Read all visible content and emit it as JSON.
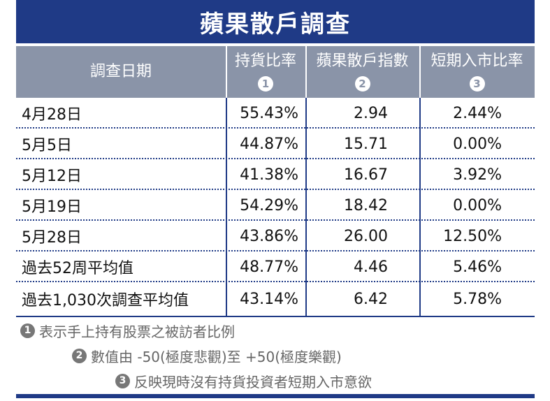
{
  "title": "蘋果散戶調查",
  "headers": {
    "date": "調查日期",
    "col1": {
      "label": "持貨比率",
      "num": "1"
    },
    "col2": {
      "label": "蘋果散戶指數",
      "num": "2"
    },
    "col3": {
      "label": "短期入市比率",
      "num": "3"
    }
  },
  "rows": [
    {
      "date": "4月28日",
      "holding": "55.43%",
      "index": "2.94",
      "entry": "2.44%"
    },
    {
      "date": "5月5日",
      "holding": "44.87%",
      "index": "15.71",
      "entry": "0.00%"
    },
    {
      "date": "5月12日",
      "holding": "41.38%",
      "index": "16.67",
      "entry": "3.92%"
    },
    {
      "date": "5月19日",
      "holding": "54.29%",
      "index": "18.42",
      "entry": "0.00%"
    },
    {
      "date": "5月28日",
      "holding": "43.86%",
      "index": "26.00",
      "entry": "12.50%"
    },
    {
      "date": "過去52周平均值",
      "holding": "48.77%",
      "index": "4.46",
      "entry": "5.46%"
    },
    {
      "date": "過去1,030次調查平均值",
      "holding": "43.14%",
      "index": "6.42",
      "entry": "5.78%"
    }
  ],
  "notes": [
    {
      "num": "1",
      "text": "表示手上持有股票之被訪者比例"
    },
    {
      "num": "2",
      "text": "數值由 -50(極度悲觀)至 +50(極度樂觀)"
    },
    {
      "num": "3",
      "text": "反映現時沒有持貨投資者短期入市意欲"
    }
  ],
  "colors": {
    "navy": "#1f3a86",
    "header_gray": "#8a94a8",
    "note_gray": "#777777"
  }
}
